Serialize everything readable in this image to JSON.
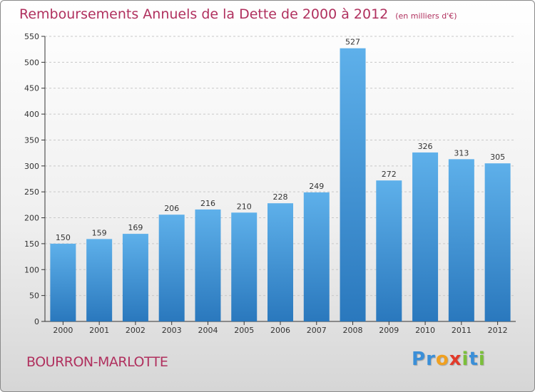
{
  "title": "Remboursements Annuels de la Dette de 2000 à 2012",
  "subtitle": "(en milliers d'€)",
  "commune": "BOURRON-MARLOTTE",
  "brand": {
    "letters": [
      "P",
      "r",
      "o",
      "x",
      "i",
      "t",
      "i"
    ],
    "colors": [
      "#3a8fd8",
      "#3a8fd8",
      "#f0a020",
      "#e23a2a",
      "#7bbf3a",
      "#3a8fd8",
      "#7bbf3a"
    ]
  },
  "colors": {
    "bar_top": "#5eb0ea",
    "bar_bottom": "#2a78bd",
    "text_accent": "#b0305e",
    "grid": "#c8c8c8"
  },
  "chart_data": {
    "type": "bar",
    "categories": [
      "2000",
      "2001",
      "2002",
      "2003",
      "2004",
      "2005",
      "2006",
      "2007",
      "2008",
      "2009",
      "2010",
      "2011",
      "2012"
    ],
    "values": [
      150,
      159,
      169,
      206,
      216,
      210,
      228,
      249,
      527,
      272,
      326,
      313,
      305
    ],
    "yticks": [
      0,
      50,
      100,
      150,
      200,
      250,
      300,
      350,
      400,
      450,
      500,
      550
    ],
    "ylim": [
      0,
      550
    ],
    "grid": true,
    "legend": "none"
  }
}
